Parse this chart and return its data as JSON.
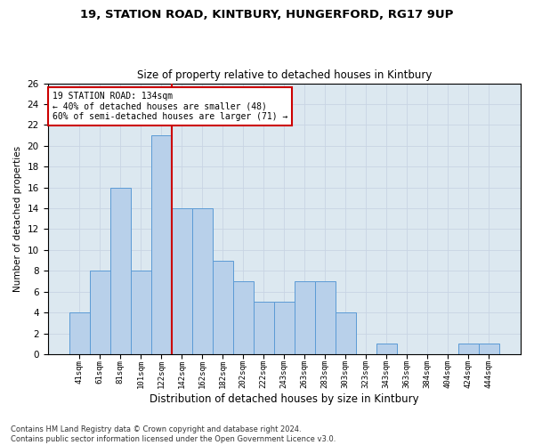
{
  "title1": "19, STATION ROAD, KINTBURY, HUNGERFORD, RG17 9UP",
  "title2": "Size of property relative to detached houses in Kintbury",
  "xlabel": "Distribution of detached houses by size in Kintbury",
  "ylabel": "Number of detached properties",
  "categories": [
    "41sqm",
    "61sqm",
    "81sqm",
    "101sqm",
    "122sqm",
    "142sqm",
    "162sqm",
    "182sqm",
    "202sqm",
    "222sqm",
    "243sqm",
    "263sqm",
    "283sqm",
    "303sqm",
    "323sqm",
    "343sqm",
    "363sqm",
    "384sqm",
    "404sqm",
    "424sqm",
    "444sqm"
  ],
  "values": [
    4,
    8,
    16,
    8,
    21,
    14,
    14,
    9,
    7,
    5,
    5,
    7,
    7,
    4,
    0,
    1,
    0,
    0,
    0,
    1,
    1
  ],
  "bar_color": "#b8d0ea",
  "bar_edge_color": "#5b9bd5",
  "vline_color": "#cc0000",
  "annotation_text": "19 STATION ROAD: 134sqm\n← 40% of detached houses are smaller (48)\n60% of semi-detached houses are larger (71) →",
  "annotation_box_color": "#ffffff",
  "annotation_box_edge_color": "#cc0000",
  "ylim": [
    0,
    26
  ],
  "yticks": [
    0,
    2,
    4,
    6,
    8,
    10,
    12,
    14,
    16,
    18,
    20,
    22,
    24,
    26
  ],
  "grid_color": "#c8d4e4",
  "background_color": "#dce8f0",
  "footer": "Contains HM Land Registry data © Crown copyright and database right 2024.\nContains public sector information licensed under the Open Government Licence v3.0."
}
